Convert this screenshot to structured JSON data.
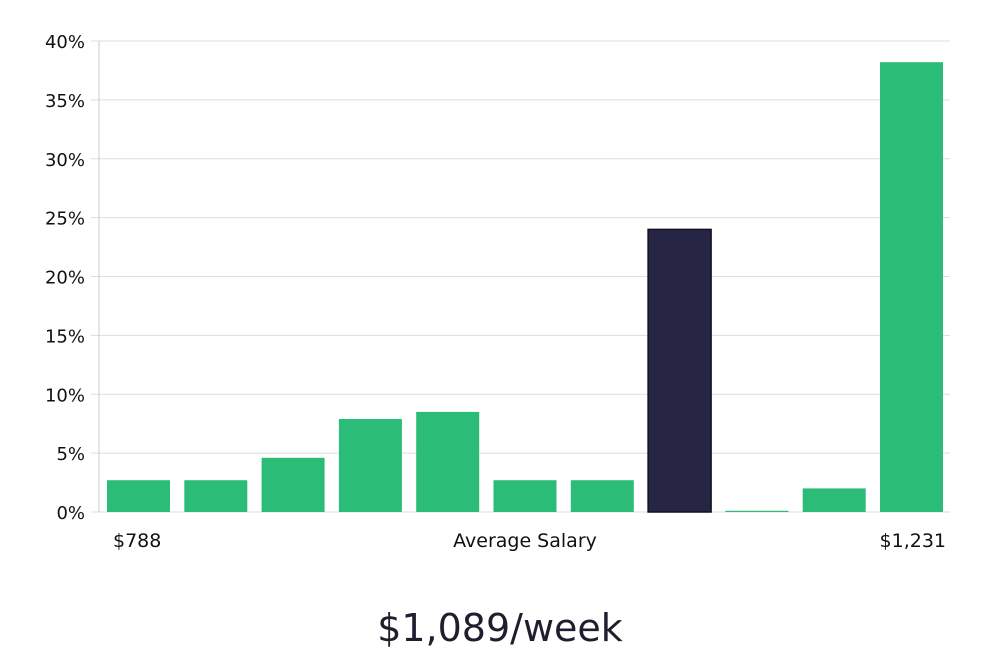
{
  "chart_data": {
    "type": "bar",
    "title": "",
    "xlabel": "Average Salary",
    "ylabel": "",
    "ylim": [
      0,
      40
    ],
    "y_ticks": [
      "0%",
      "5%",
      "10%",
      "15%",
      "20%",
      "25%",
      "30%",
      "35%",
      "40%"
    ],
    "x_range_labels": {
      "min": "$788",
      "max": "$1,231"
    },
    "grid": true,
    "values": [
      2.7,
      2.7,
      4.6,
      7.9,
      8.5,
      2.7,
      2.7,
      24.0,
      0.1,
      2.0,
      38.2
    ],
    "highlight_index": 7,
    "colors": {
      "bar": "#2bbd77",
      "highlight": "#272544",
      "grid": "#dddddd",
      "axis": "#cccccc"
    }
  },
  "salary": {
    "value": "$1,089/week"
  }
}
